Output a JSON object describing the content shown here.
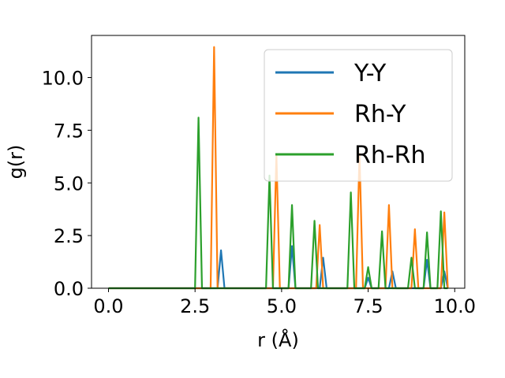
{
  "chart_data": {
    "type": "line",
    "title": "",
    "xlabel": "r (Å)",
    "ylabel": "g(r)",
    "xlim": [
      -0.49,
      10.29
    ],
    "ylim": [
      0,
      12.0
    ],
    "xticks": [
      "0.0",
      "2.5",
      "5.0",
      "7.5",
      "10.0"
    ],
    "yticks": [
      "0.0",
      "2.5",
      "5.0",
      "7.5",
      "10.0"
    ],
    "grid": false,
    "legend_position": "upper right",
    "series": [
      {
        "name": "Y-Y",
        "color": "#1f77b4",
        "peaks": [
          [
            3.25,
            1.8
          ],
          [
            5.3,
            2.0
          ],
          [
            6.2,
            1.45
          ],
          [
            7.5,
            0.5
          ],
          [
            8.2,
            0.8
          ],
          [
            9.2,
            1.35
          ],
          [
            9.7,
            0.8
          ]
        ]
      },
      {
        "name": "Rh-Y",
        "color": "#ff7f0e",
        "peaks": [
          [
            3.05,
            11.45
          ],
          [
            4.85,
            6.35
          ],
          [
            6.1,
            3.0
          ],
          [
            7.25,
            6.4
          ],
          [
            8.1,
            3.95
          ],
          [
            8.85,
            2.8
          ],
          [
            9.7,
            3.6
          ]
        ]
      },
      {
        "name": "Rh-Rh",
        "color": "#2ca02c",
        "peaks": [
          [
            2.6,
            8.1
          ],
          [
            4.65,
            5.35
          ],
          [
            5.3,
            3.95
          ],
          [
            5.95,
            3.2
          ],
          [
            7.0,
            4.55
          ],
          [
            7.5,
            1.0
          ],
          [
            7.9,
            2.7
          ],
          [
            8.75,
            1.45
          ],
          [
            9.2,
            2.65
          ],
          [
            9.6,
            3.65
          ]
        ]
      }
    ]
  }
}
